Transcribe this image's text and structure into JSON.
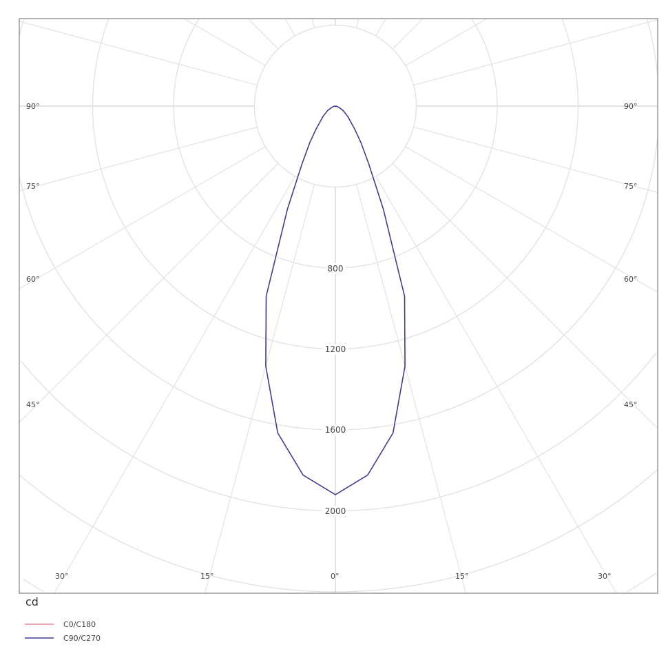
{
  "chart_data": {
    "type": "polar",
    "unit_label": "cd",
    "radial_ticks": [
      "800",
      "1200",
      "1600",
      "2000"
    ],
    "radial_step": 400,
    "radial_max": 3200,
    "angle_grid_step_deg": 15,
    "angle_labels_left": [
      "90°",
      "75°",
      "60°",
      "45°"
    ],
    "angle_labels_right": [
      "90°",
      "75°",
      "60°",
      "45°"
    ],
    "angle_labels_bottom": [
      "30°",
      "15°",
      "0°",
      "15°",
      "30°"
    ],
    "gamma_deg": [
      0,
      5,
      10,
      15,
      20,
      25,
      30,
      35,
      40,
      50,
      60,
      70,
      80,
      90
    ],
    "series": [
      {
        "name": "C0/C180",
        "color": "#e08a8a",
        "values": [
          1920,
          1830,
          1640,
          1330,
          1000,
          560,
          330,
          220,
          150,
          80,
          45,
          20,
          8,
          0
        ]
      },
      {
        "name": "C90/C270",
        "color": "#3b3b96",
        "values": [
          1920,
          1830,
          1640,
          1330,
          1000,
          560,
          330,
          220,
          150,
          80,
          45,
          20,
          8,
          0
        ]
      }
    ],
    "grid": true,
    "legend_position": "bottom-left"
  }
}
